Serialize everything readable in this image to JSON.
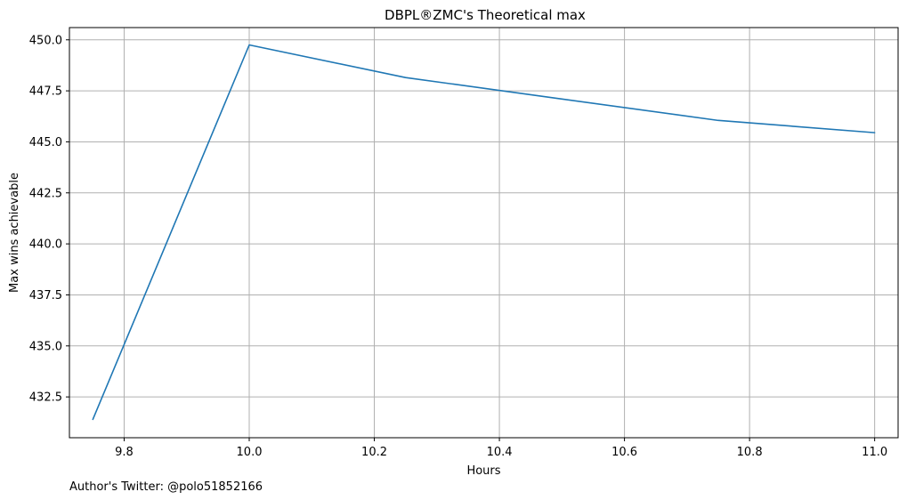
{
  "chart_data": {
    "type": "line",
    "title": "DBPL®ZMC's Theoretical max",
    "xlabel": "Hours",
    "ylabel": "Max wins achievable",
    "xlim": [
      9.7125,
      11.0375
    ],
    "ylim": [
      430.5,
      450.6
    ],
    "xticks": [
      9.8,
      10.0,
      10.2,
      10.4,
      10.6,
      10.8,
      11.0
    ],
    "yticks": [
      432.5,
      435.0,
      437.5,
      440.0,
      442.5,
      445.0,
      447.5,
      450.0
    ],
    "grid": true,
    "series": [
      {
        "color": "#1f77b4",
        "x": [
          9.75,
          10.0,
          10.25,
          10.5,
          10.75,
          11.0
        ],
        "y": [
          431.4,
          449.75,
          448.15,
          447.1,
          446.05,
          445.45
        ]
      }
    ]
  },
  "footer": {
    "credit": "Author's Twitter: @polo51852166"
  }
}
